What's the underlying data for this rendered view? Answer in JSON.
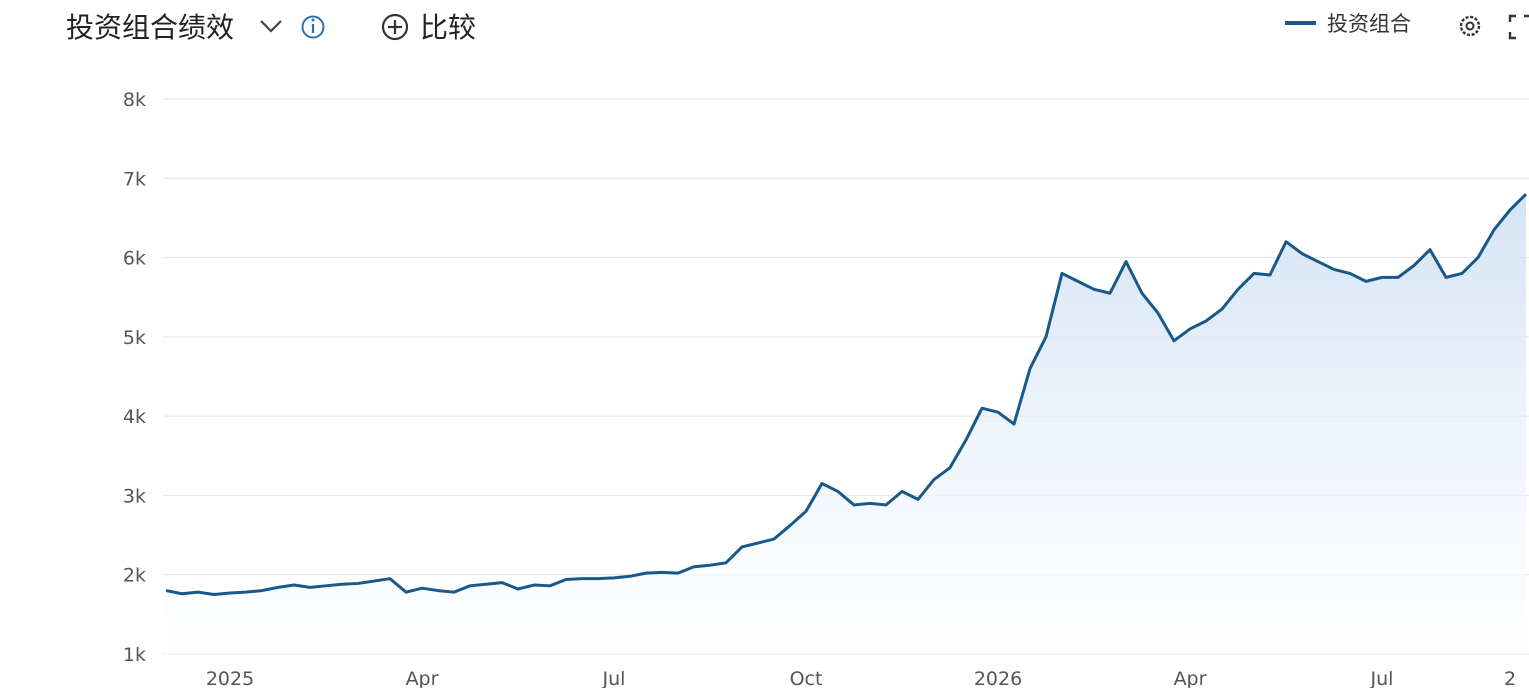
{
  "header": {
    "title": "投资组合绩效",
    "compare": "比较"
  },
  "chart_data": {
    "type": "line",
    "categories": [
      null,
      null,
      null,
      null,
      "2025",
      null,
      null,
      null,
      null,
      null,
      null,
      null,
      null,
      null,
      null,
      null,
      "Apr",
      null,
      null,
      null,
      null,
      null,
      null,
      null,
      null,
      null,
      null,
      null,
      "Jul",
      null,
      null,
      null,
      null,
      null,
      null,
      null,
      null,
      null,
      null,
      null,
      "Oct",
      null,
      null,
      null,
      null,
      null,
      null,
      null,
      null,
      null,
      null,
      null,
      "2026",
      null,
      null,
      null,
      null,
      null,
      null,
      null,
      null,
      null,
      null,
      null,
      "Apr",
      null,
      null,
      null,
      null,
      null,
      null,
      null,
      null,
      null,
      null,
      null,
      "Jul",
      null,
      null,
      null,
      null,
      null,
      null,
      null,
      "2",
      null
    ],
    "series": [
      {
        "name": "投资组合",
        "color": "#17598a",
        "values": [
          1800,
          1760,
          1780,
          1750,
          1770,
          1780,
          1800,
          1840,
          1870,
          1840,
          1860,
          1880,
          1890,
          1920,
          1950,
          1780,
          1830,
          1800,
          1780,
          1860,
          1880,
          1900,
          1820,
          1870,
          1860,
          1940,
          1950,
          1950,
          1960,
          1980,
          2020,
          2030,
          2020,
          2100,
          2120,
          2150,
          2350,
          2400,
          2450,
          2620,
          2800,
          3150,
          3050,
          2880,
          2900,
          2880,
          3050,
          2950,
          3200,
          3350,
          3700,
          4100,
          4050,
          3900,
          4600,
          5000,
          5800,
          5700,
          5600,
          5550,
          5950,
          5550,
          5300,
          4950,
          5100,
          5200,
          5350,
          5600,
          5800,
          5780,
          6200,
          6050,
          5950,
          5850,
          5800,
          5700,
          5750,
          5750,
          5900,
          6100,
          5750,
          5800,
          6000,
          6350,
          6600,
          6800
        ]
      }
    ],
    "ylim": [
      1000,
      8000
    ],
    "yticks": [
      {
        "value": 1000,
        "label": "1k"
      },
      {
        "value": 2000,
        "label": "2k"
      },
      {
        "value": 3000,
        "label": "3k"
      },
      {
        "value": 4000,
        "label": "4k"
      },
      {
        "value": 5000,
        "label": "5k"
      },
      {
        "value": 6000,
        "label": "6k"
      },
      {
        "value": 7000,
        "label": "7k"
      },
      {
        "value": 8000,
        "label": "8k"
      }
    ],
    "grid": true
  }
}
